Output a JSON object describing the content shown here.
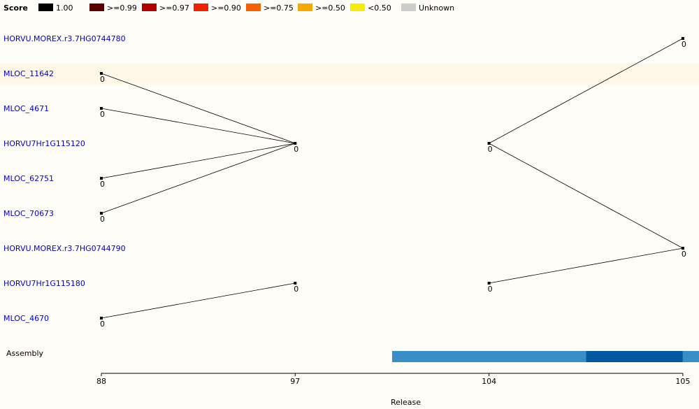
{
  "legend": {
    "title": "Score",
    "items": [
      {
        "label": "1.00",
        "color": "#000000"
      },
      {
        "label": ">=0.99",
        "color": "#5a0000"
      },
      {
        "label": ">=0.97",
        "color": "#b50000"
      },
      {
        "label": ">=0.90",
        "color": "#ee2200"
      },
      {
        "label": ">=0.75",
        "color": "#f56000"
      },
      {
        "label": ">=0.50",
        "color": "#f5a800"
      },
      {
        "label": "<0.50",
        "color": "#f5ee00"
      },
      {
        "label": "Unknown",
        "color": "#cccccc"
      }
    ]
  },
  "genes": [
    {
      "id": "HORVU.MOREX.r3.7HG0744780",
      "highlight": false
    },
    {
      "id": "MLOC_11642",
      "highlight": true
    },
    {
      "id": "MLOC_4671",
      "highlight": false
    },
    {
      "id": "HORVU7Hr1G115120",
      "highlight": false
    },
    {
      "id": "MLOC_62751",
      "highlight": false
    },
    {
      "id": "MLOC_70673",
      "highlight": false
    },
    {
      "id": "HORVU.MOREX.r3.7HG0744790",
      "highlight": false
    },
    {
      "id": "HORVU7Hr1G115180",
      "highlight": false
    },
    {
      "id": "MLOC_4670",
      "highlight": false
    }
  ],
  "releases": [
    "88",
    "97",
    "104",
    "105"
  ],
  "nodes": [
    {
      "id": "a",
      "row": 1,
      "release": 0,
      "score_label": "0"
    },
    {
      "id": "b",
      "row": 2,
      "release": 0,
      "score_label": "0"
    },
    {
      "id": "c",
      "row": 4,
      "release": 0,
      "score_label": "0"
    },
    {
      "id": "d",
      "row": 5,
      "release": 0,
      "score_label": "0"
    },
    {
      "id": "e",
      "row": 8,
      "release": 0,
      "score_label": "0"
    },
    {
      "id": "f",
      "row": 3,
      "release": 1,
      "score_label": "0"
    },
    {
      "id": "g",
      "row": 7,
      "release": 1,
      "score_label": "0"
    },
    {
      "id": "h",
      "row": 3,
      "release": 2,
      "score_label": "0"
    },
    {
      "id": "i",
      "row": 7,
      "release": 2,
      "score_label": "0"
    },
    {
      "id": "j",
      "row": 0,
      "release": 3,
      "score_label": "0"
    },
    {
      "id": "k",
      "row": 6,
      "release": 3,
      "score_label": "0"
    }
  ],
  "edges": [
    [
      "a",
      "f"
    ],
    [
      "b",
      "f"
    ],
    [
      "c",
      "f"
    ],
    [
      "d",
      "f"
    ],
    [
      "e",
      "g"
    ],
    [
      "h",
      "j"
    ],
    [
      "h",
      "k"
    ],
    [
      "i",
      "k"
    ]
  ],
  "assembly": {
    "label": "Assembly",
    "segments": [
      {
        "from": 1.5,
        "to": 2.5,
        "color": "#3a8ec8"
      },
      {
        "from": 2.5,
        "to": 3.0,
        "color": "#0058a0"
      },
      {
        "from": 3.0,
        "to": 3.1,
        "color": "#3a8ec8"
      }
    ]
  },
  "xlabel": "Release"
}
